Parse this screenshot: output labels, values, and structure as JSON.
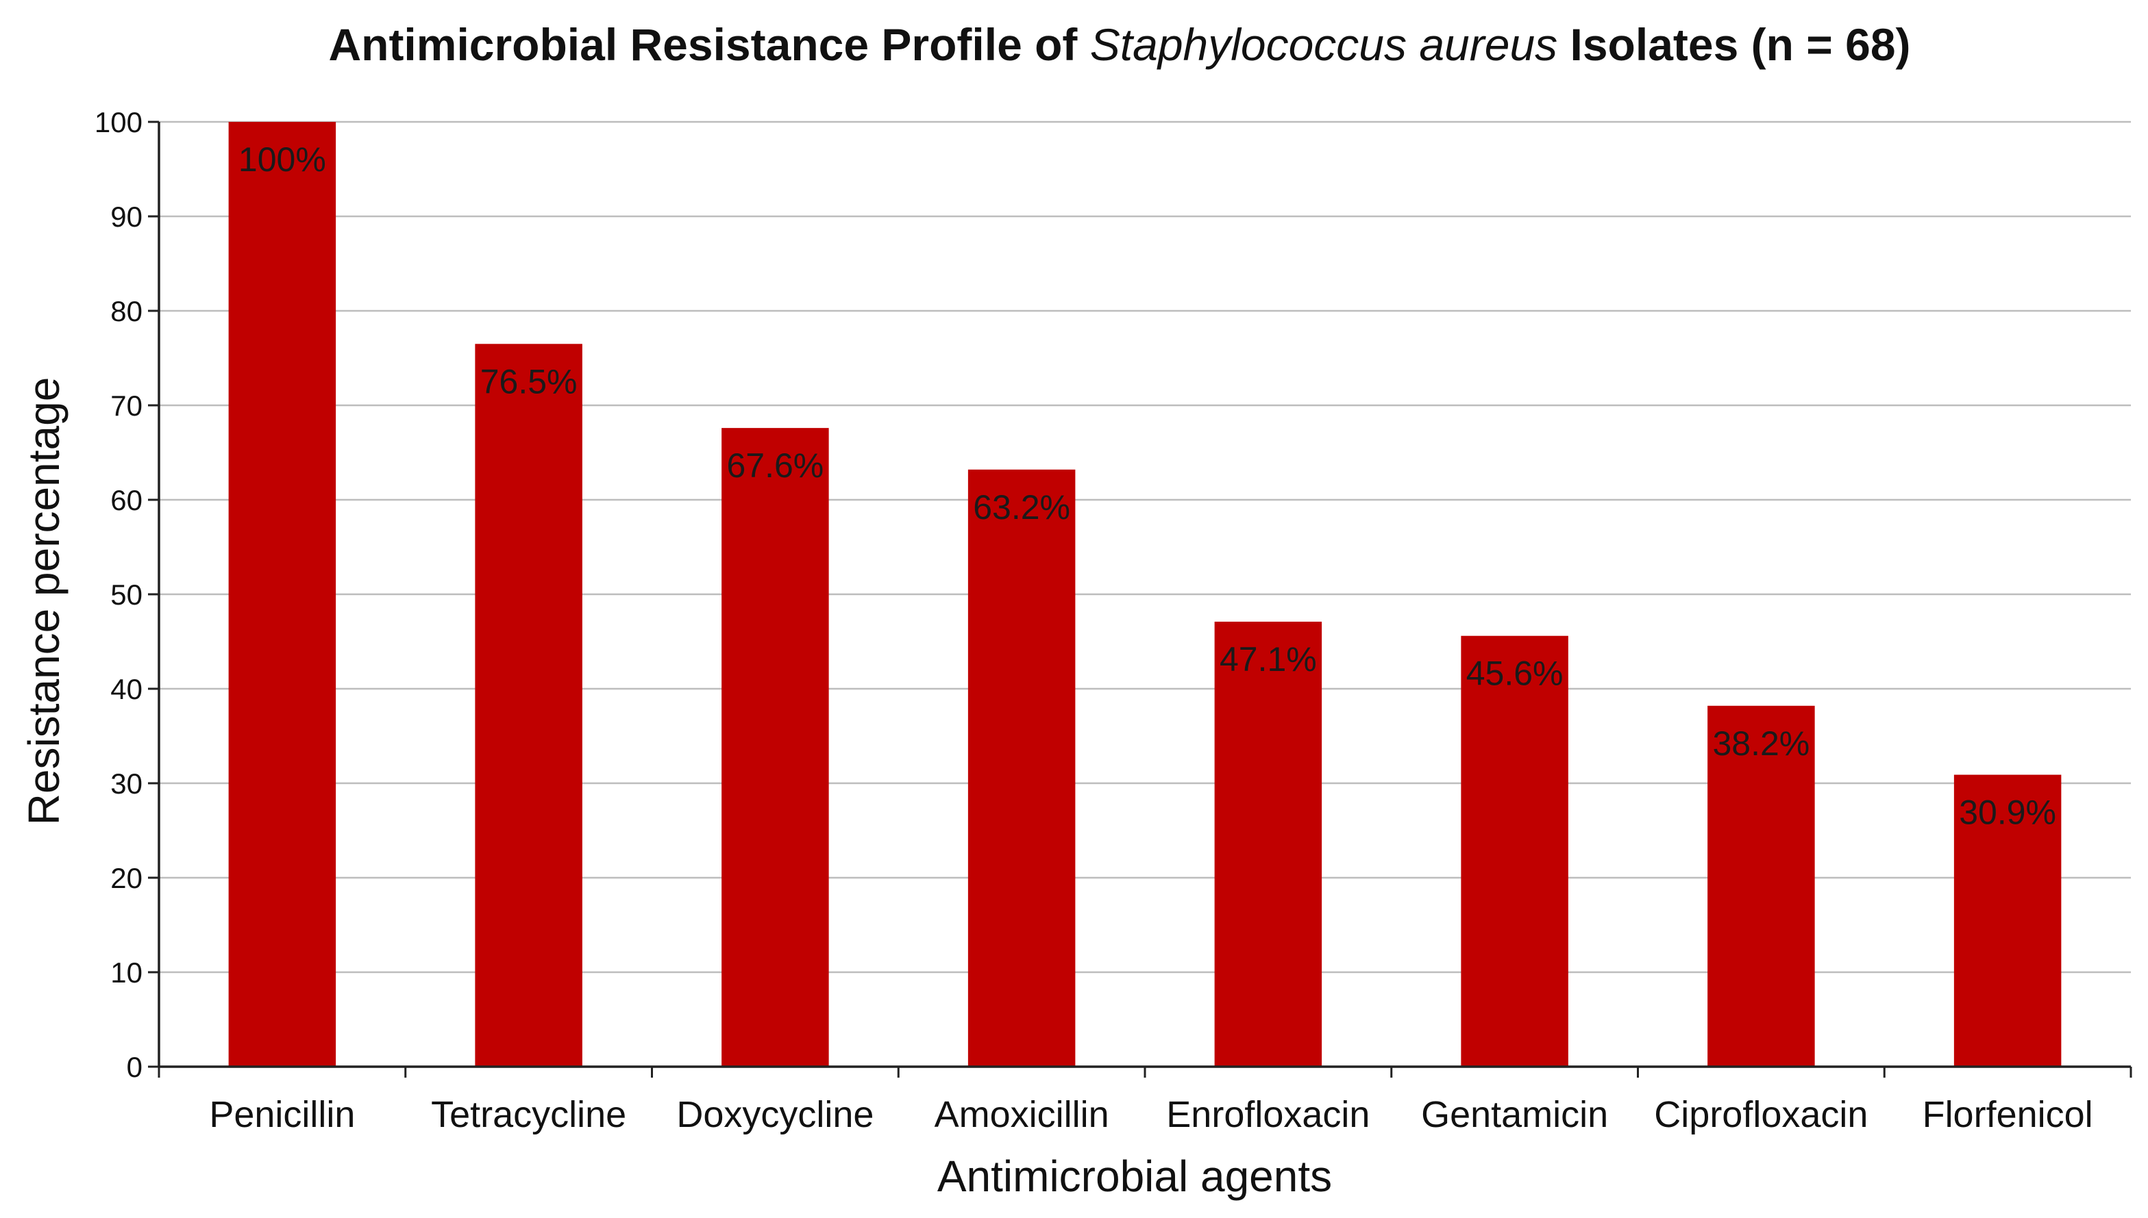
{
  "chart_data": {
    "type": "bar",
    "title": {
      "before": "Antimicrobial Resistance Profile of ",
      "italic": "Staphylococcus aureus",
      "after": " Isolates (n = 68)"
    },
    "xlabel": "Antimicrobial agents",
    "ylabel": "Resistance percentage",
    "ylim": [
      0,
      100
    ],
    "yticks": [
      "0",
      "10",
      "20",
      "30",
      "40",
      "50",
      "60",
      "70",
      "80",
      "90",
      "100"
    ],
    "grid": true,
    "categories": [
      "Penicillin",
      "Tetracycline",
      "Doxycycline",
      "Amoxicillin",
      "Enrofloxacin",
      "Gentamicin",
      "Ciprofloxacin",
      "Florfenicol"
    ],
    "values": [
      100,
      76.5,
      67.6,
      63.2,
      47.1,
      45.6,
      38.2,
      30.9
    ],
    "data_labels": [
      "100%",
      "76.5%",
      "67.6%",
      "63.2%",
      "47.1%",
      "45.6%",
      "38.2%",
      "30.9%"
    ],
    "bar_color": "#c00000"
  }
}
